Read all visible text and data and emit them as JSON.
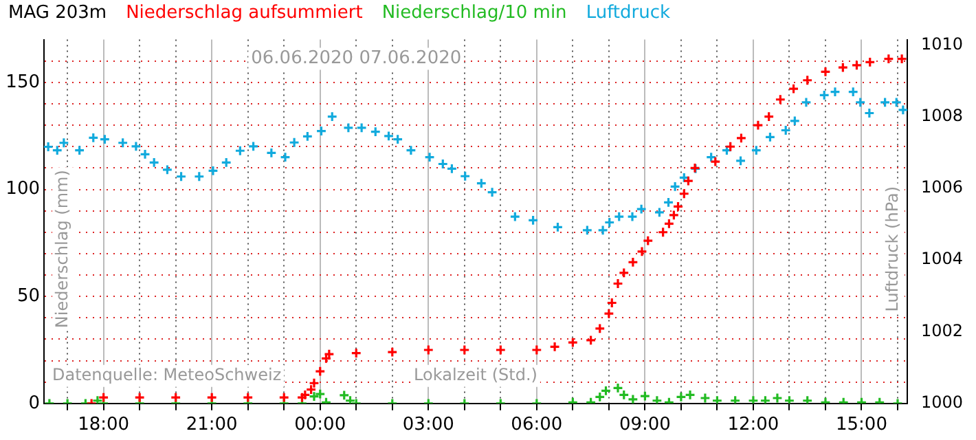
{
  "chart_data": {
    "type": "scatter",
    "title": "MAG 203m",
    "xlabel": "Lokalzeit (Std.)",
    "ylabel": "Niederschlag (mm)",
    "y2label": "Luftdruck (hPa)",
    "annotations": [
      "06.06.2020 07.06.2020",
      "Datenquelle: MeteoSchweiz"
    ],
    "legend": "top",
    "grid": true,
    "marker": "cross",
    "xlim": [
      "2020-06-06T16:21",
      "2020-06-07T16:16"
    ],
    "xticks": [
      {
        "value": "2020-06-06T17:00",
        "label": null
      },
      {
        "value": "2020-06-06T18:00",
        "label": "18:00"
      },
      {
        "value": "2020-06-06T19:00",
        "label": null
      },
      {
        "value": "2020-06-06T20:00",
        "label": null
      },
      {
        "value": "2020-06-06T21:00",
        "label": "21:00"
      },
      {
        "value": "2020-06-06T22:00",
        "label": null
      },
      {
        "value": "2020-06-06T23:00",
        "label": null
      },
      {
        "value": "2020-06-07T00:00",
        "label": "00:00"
      },
      {
        "value": "2020-06-07T01:00",
        "label": null
      },
      {
        "value": "2020-06-07T02:00",
        "label": null
      },
      {
        "value": "2020-06-07T03:00",
        "label": "03:00"
      },
      {
        "value": "2020-06-07T04:00",
        "label": null
      },
      {
        "value": "2020-06-07T05:00",
        "label": null
      },
      {
        "value": "2020-06-07T06:00",
        "label": "06:00"
      },
      {
        "value": "2020-06-07T07:00",
        "label": null
      },
      {
        "value": "2020-06-07T08:00",
        "label": null
      },
      {
        "value": "2020-06-07T09:00",
        "label": "09:00"
      },
      {
        "value": "2020-06-07T10:00",
        "label": null
      },
      {
        "value": "2020-06-07T11:00",
        "label": null
      },
      {
        "value": "2020-06-07T12:00",
        "label": "12:00"
      },
      {
        "value": "2020-06-07T13:00",
        "label": null
      },
      {
        "value": "2020-06-07T14:00",
        "label": null
      },
      {
        "value": "2020-06-07T15:00",
        "label": "15:00"
      },
      {
        "value": "2020-06-07T16:00",
        "label": null
      }
    ],
    "ylim": [
      0,
      170
    ],
    "yticks": [
      0,
      {
        "value": 10,
        "label": null
      },
      {
        "value": 20,
        "label": null
      },
      {
        "value": 30,
        "label": null
      },
      {
        "value": 40,
        "label": null
      },
      50,
      {
        "value": 60,
        "label": null
      },
      {
        "value": 70,
        "label": null
      },
      {
        "value": 80,
        "label": null
      },
      {
        "value": 90,
        "label": null
      },
      100,
      {
        "value": 110,
        "label": null
      },
      {
        "value": 120,
        "label": null
      },
      {
        "value": 130,
        "label": null
      },
      {
        "value": 140,
        "label": null
      },
      150,
      {
        "value": 160,
        "label": null
      }
    ],
    "y2lim": [
      1000,
      1010.15
    ],
    "y2ticks": [
      1000,
      1002,
      1004,
      1006,
      1008,
      1010
    ],
    "series": [
      {
        "name": "Niederschlag aufsummiert",
        "color": "#ff0000",
        "x": [
          "2020-06-06T17:40",
          "2020-06-06T18:00",
          "2020-06-06T19:00",
          "2020-06-06T20:00",
          "2020-06-06T21:00",
          "2020-06-06T22:00",
          "2020-06-06T23:00",
          "2020-06-06T23:30",
          "2020-06-06T23:35",
          "2020-06-06T23:45",
          "2020-06-06T23:50",
          "2020-06-07T00:00",
          "2020-06-07T00:10",
          "2020-06-07T00:15",
          "2020-06-07T01:00",
          "2020-06-07T02:00",
          "2020-06-07T03:00",
          "2020-06-07T04:00",
          "2020-06-07T05:00",
          "2020-06-07T06:00",
          "2020-06-07T06:30",
          "2020-06-07T07:00",
          "2020-06-07T07:30",
          "2020-06-07T07:45",
          "2020-06-07T08:00",
          "2020-06-07T08:05",
          "2020-06-07T08:15",
          "2020-06-07T08:25",
          "2020-06-07T08:40",
          "2020-06-07T08:55",
          "2020-06-07T09:05",
          "2020-06-07T09:30",
          "2020-06-07T09:40",
          "2020-06-07T09:48",
          "2020-06-07T09:55",
          "2020-06-07T10:05",
          "2020-06-07T10:12",
          "2020-06-07T10:23",
          "2020-06-07T10:57",
          "2020-06-07T11:22",
          "2020-06-07T11:40",
          "2020-06-07T12:08",
          "2020-06-07T12:26",
          "2020-06-07T12:45",
          "2020-06-07T13:07",
          "2020-06-07T13:30",
          "2020-06-07T14:00",
          "2020-06-07T14:29",
          "2020-06-07T14:52",
          "2020-06-07T15:14",
          "2020-06-07T15:45",
          "2020-06-07T16:07"
        ],
        "values": [
          0,
          2.8,
          2.8,
          2.8,
          2.8,
          2.8,
          2.8,
          2.8,
          4,
          6.5,
          9.5,
          15,
          21,
          23,
          23.5,
          24,
          25,
          25,
          25,
          25,
          26.5,
          28.5,
          29.5,
          35,
          42,
          47,
          56,
          61,
          66,
          71,
          76,
          80,
          84,
          88,
          92,
          98,
          104,
          110,
          113,
          120,
          124,
          130,
          134,
          142,
          147,
          151,
          155,
          157,
          158,
          159.5,
          161,
          161
        ]
      },
      {
        "name": "Niederschlag/10 min",
        "color": "#22bb22",
        "x": [
          "2020-06-06T16:30",
          "2020-06-06T17:00",
          "2020-06-06T17:30",
          "2020-06-06T17:50",
          "2020-06-06T18:00",
          "2020-06-06T19:00",
          "2020-06-06T20:00",
          "2020-06-06T21:00",
          "2020-06-06T22:00",
          "2020-06-06T23:00",
          "2020-06-06T23:30",
          "2020-06-06T23:50",
          "2020-06-07T00:00",
          "2020-06-07T00:10",
          "2020-06-07T00:40",
          "2020-06-07T00:50",
          "2020-06-07T01:00",
          "2020-06-07T02:00",
          "2020-06-07T03:00",
          "2020-06-07T04:00",
          "2020-06-07T05:00",
          "2020-06-07T06:00",
          "2020-06-07T07:00",
          "2020-06-07T07:30",
          "2020-06-07T07:45",
          "2020-06-07T07:55",
          "2020-06-07T08:15",
          "2020-06-07T08:25",
          "2020-06-07T08:40",
          "2020-06-07T09:00",
          "2020-06-07T09:20",
          "2020-06-07T09:40",
          "2020-06-07T10:00",
          "2020-06-07T10:15",
          "2020-06-07T10:40",
          "2020-06-07T11:00",
          "2020-06-07T11:30",
          "2020-06-07T12:00",
          "2020-06-07T12:20",
          "2020-06-07T12:40",
          "2020-06-07T13:00",
          "2020-06-07T13:30",
          "2020-06-07T14:00",
          "2020-06-07T14:30",
          "2020-06-07T15:00",
          "2020-06-07T15:30",
          "2020-06-07T16:00"
        ],
        "values": [
          0,
          0,
          0,
          1.3,
          0,
          0,
          0,
          0,
          0,
          0,
          0,
          3.3,
          4.4,
          0.5,
          3.8,
          1.3,
          0,
          0,
          0,
          0,
          0,
          0,
          0.5,
          0.5,
          3,
          5.9,
          7.2,
          4,
          1.9,
          3.4,
          1.3,
          0.5,
          3,
          4,
          2.5,
          1.3,
          1.3,
          1.3,
          1.3,
          2.5,
          1.3,
          1.3,
          0.5,
          0.5,
          0.5,
          0.5,
          0
        ]
      },
      {
        "name": "Luftdruck",
        "color": "#11aadd",
        "axis": "y2",
        "x": [
          "2020-06-06T16:28",
          "2020-06-06T16:43",
          "2020-06-06T16:54",
          "2020-06-06T17:20",
          "2020-06-06T17:43",
          "2020-06-06T18:02",
          "2020-06-06T18:32",
          "2020-06-06T18:54",
          "2020-06-06T19:09",
          "2020-06-06T19:24",
          "2020-06-06T19:46",
          "2020-06-06T20:09",
          "2020-06-06T20:39",
          "2020-06-06T21:02",
          "2020-06-06T21:24",
          "2020-06-06T21:47",
          "2020-06-06T22:09",
          "2020-06-06T22:39",
          "2020-06-06T23:02",
          "2020-06-06T23:17",
          "2020-06-06T23:39",
          "2020-06-07T00:02",
          "2020-06-07T00:20",
          "2020-06-07T00:47",
          "2020-06-07T01:09",
          "2020-06-07T01:32",
          "2020-06-07T01:54",
          "2020-06-07T02:09",
          "2020-06-07T02:31",
          "2020-06-07T03:02",
          "2020-06-07T03:24",
          "2020-06-07T03:39",
          "2020-06-07T04:01",
          "2020-06-07T04:28",
          "2020-06-07T04:46",
          "2020-06-07T05:24",
          "2020-06-07T05:54",
          "2020-06-07T06:35",
          "2020-06-07T07:24",
          "2020-06-07T07:50",
          "2020-06-07T08:01",
          "2020-06-07T08:17",
          "2020-06-07T08:39",
          "2020-06-07T08:54",
          "2020-06-07T09:24",
          "2020-06-07T09:39",
          "2020-06-07T09:50",
          "2020-06-07T10:05",
          "2020-06-07T10:24",
          "2020-06-07T10:50",
          "2020-06-07T11:16",
          "2020-06-07T11:39",
          "2020-06-07T12:05",
          "2020-06-07T12:28",
          "2020-06-07T12:54",
          "2020-06-07T13:09",
          "2020-06-07T13:28",
          "2020-06-07T13:58",
          "2020-06-07T14:16",
          "2020-06-07T14:46",
          "2020-06-07T14:58",
          "2020-06-07T15:13",
          "2020-06-07T15:39",
          "2020-06-07T15:58",
          "2020-06-07T16:09"
        ],
        "values": [
          1007.16,
          1007.06,
          1007.27,
          1007.06,
          1007.41,
          1007.37,
          1007.27,
          1007.17,
          1006.95,
          1006.72,
          1006.52,
          1006.33,
          1006.33,
          1006.49,
          1006.72,
          1007.05,
          1007.17,
          1006.99,
          1006.87,
          1007.28,
          1007.45,
          1007.6,
          1008.0,
          1007.69,
          1007.69,
          1007.58,
          1007.46,
          1007.37,
          1007.06,
          1006.87,
          1006.68,
          1006.55,
          1006.34,
          1006.14,
          1005.89,
          1005.21,
          1005.11,
          1004.92,
          1004.83,
          1004.83,
          1005.05,
          1005.21,
          1005.21,
          1005.42,
          1005.33,
          1005.61,
          1006.05,
          1006.3,
          1006.55,
          1006.87,
          1007.06,
          1006.77,
          1007.06,
          1007.43,
          1007.62,
          1007.88,
          1008.4,
          1008.6,
          1008.69,
          1008.69,
          1008.4,
          1008.1,
          1008.4,
          1008.4,
          1008.19
        ]
      }
    ]
  }
}
